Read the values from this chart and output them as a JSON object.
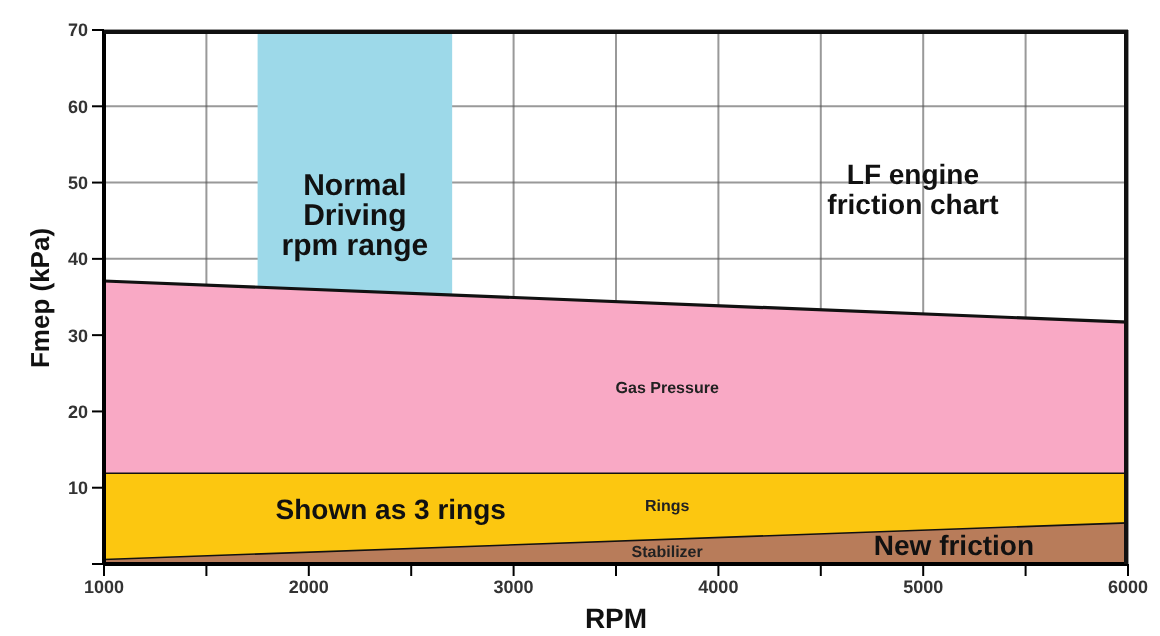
{
  "chart_data": {
    "type": "area",
    "stacked": true,
    "xlabel": "RPM",
    "ylabel": "Fmep (kPa)",
    "x": [
      1000,
      6000
    ],
    "series": [
      {
        "name": "Stabilizer",
        "color": "#b87c5a",
        "values": [
          0.7,
          5.5
        ]
      },
      {
        "name": "Rings",
        "color": "#fcc710",
        "values": [
          11.3,
          6.5
        ]
      },
      {
        "name": "Gas Pressure",
        "color": "#f9a9c5",
        "values": [
          25.1,
          19.7
        ]
      }
    ],
    "xlim": [
      1000,
      6000
    ],
    "xticks": [
      1000,
      {
        "value": 1500,
        "label": null
      },
      2000,
      {
        "value": 2500,
        "label": null
      },
      3000,
      {
        "value": 3500,
        "label": null
      },
      4000,
      {
        "value": 4500,
        "label": null
      },
      5000,
      {
        "value": 5500,
        "label": null
      },
      6000
    ],
    "ylim": [
      0,
      70
    ],
    "yticks": [
      {
        "value": 0,
        "label": null
      },
      10,
      20,
      30,
      40,
      50,
      60,
      70
    ],
    "grid": true,
    "bands": [
      {
        "axis": "x",
        "from": 1750,
        "to": 2700,
        "label": "Normal\nDriving\nrpm range",
        "color": "#9dd9e9"
      }
    ],
    "annotations": [
      "LF engine\nfriction chart",
      "Shown as 3 rings",
      "New friction"
    ]
  }
}
